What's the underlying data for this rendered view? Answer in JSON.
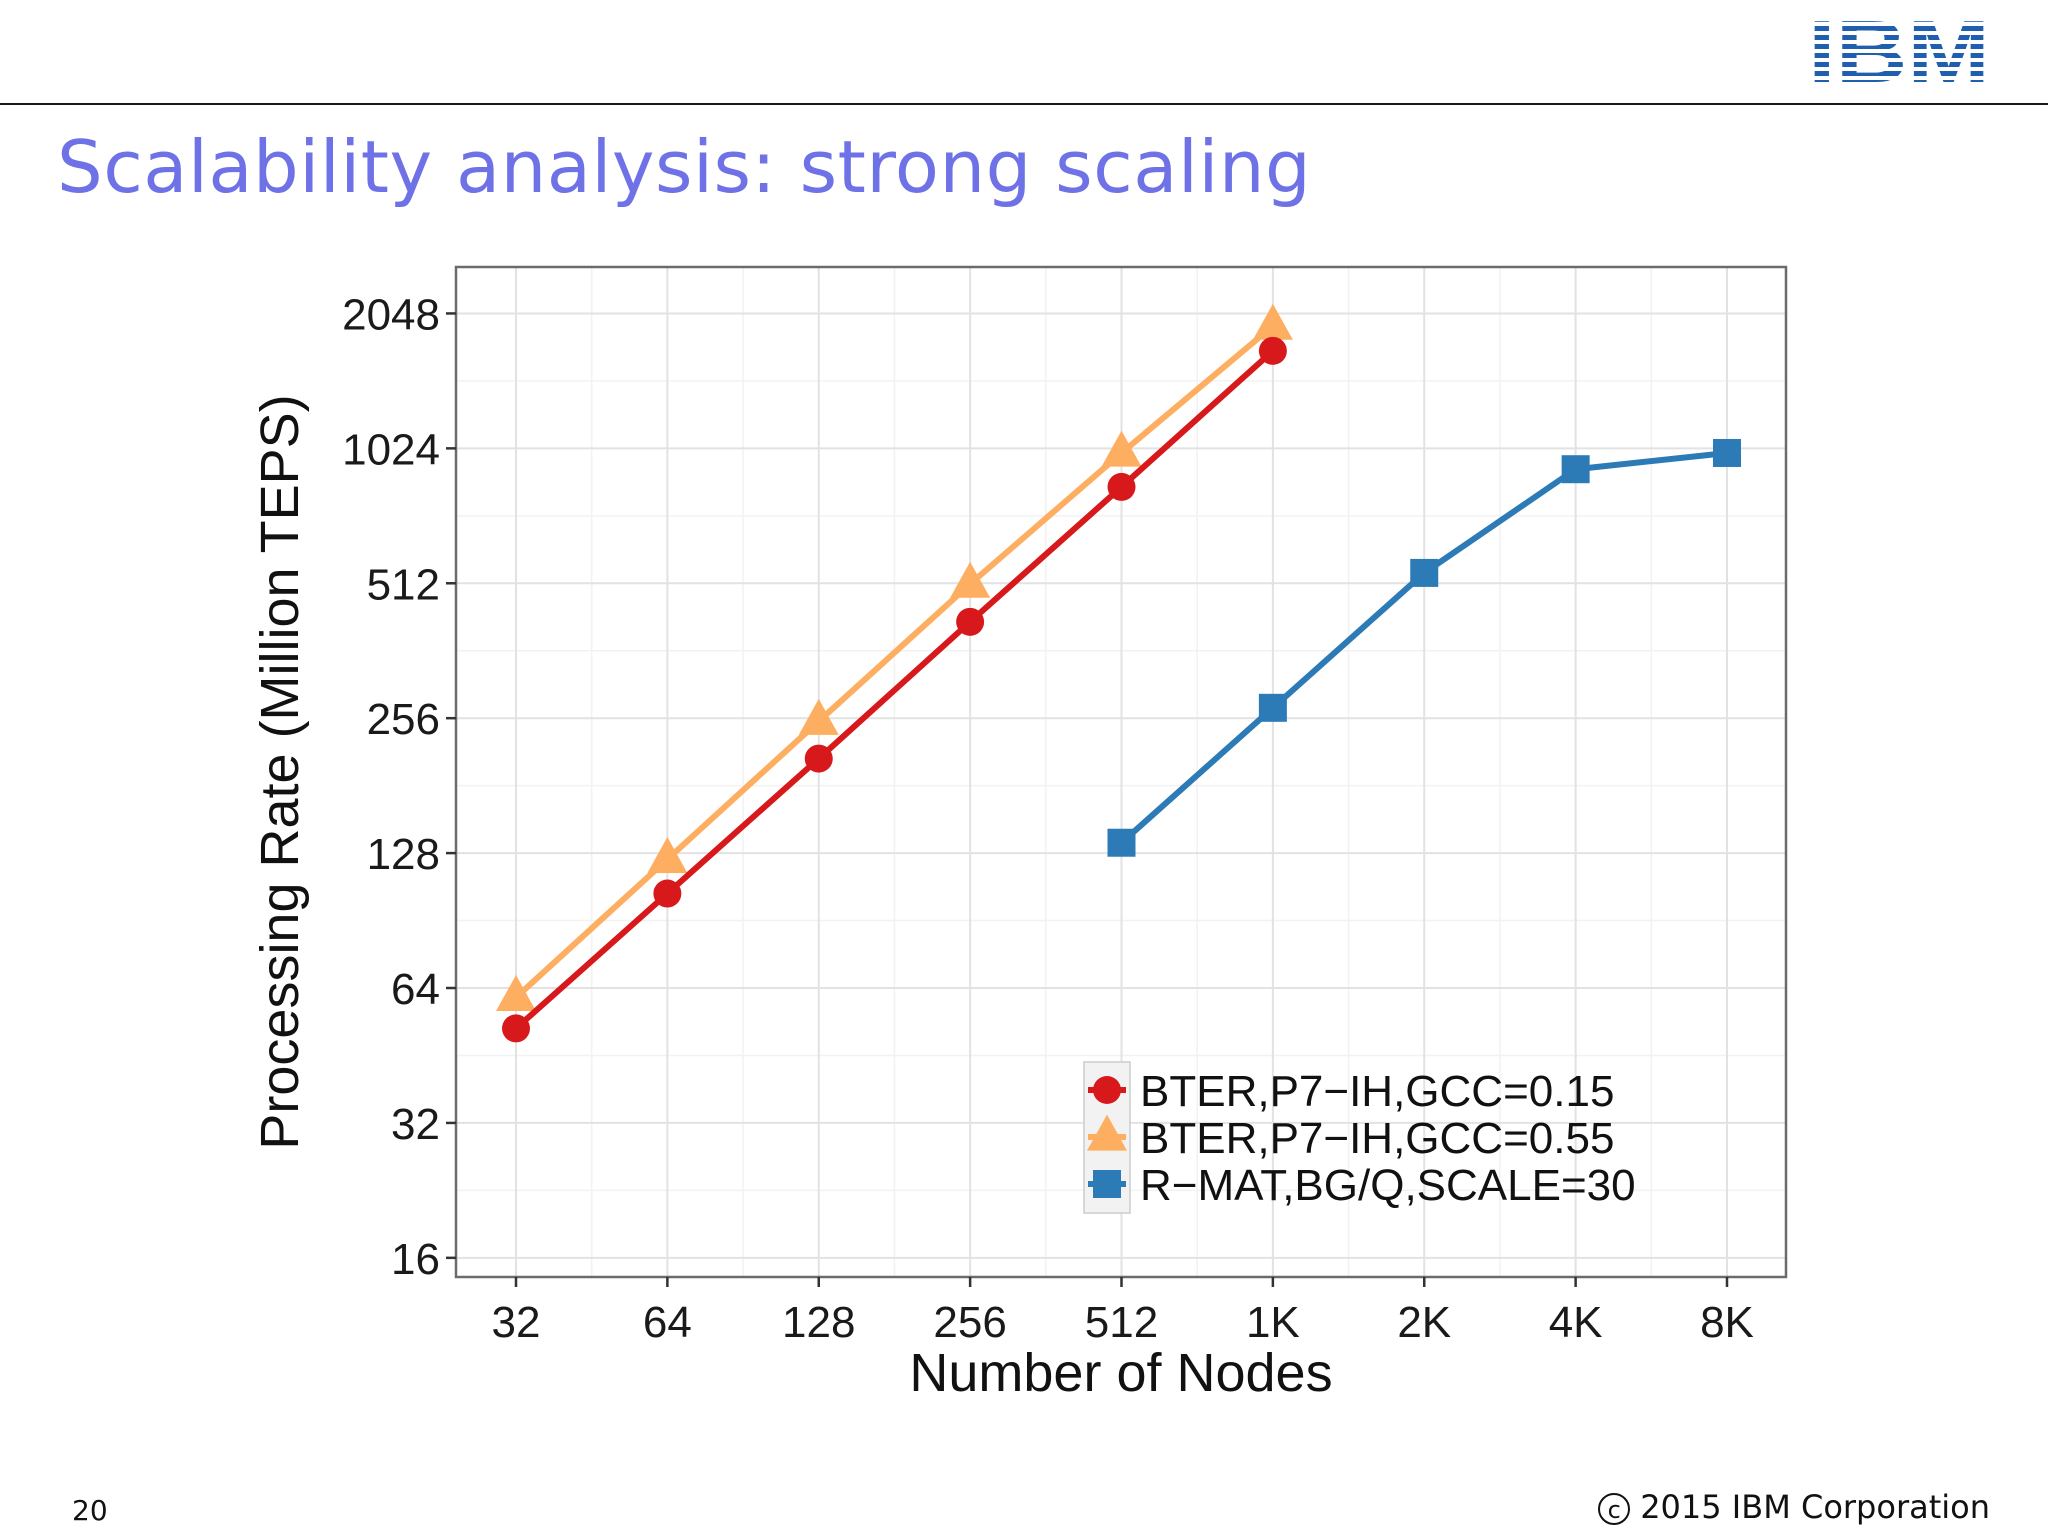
{
  "slide": {
    "title": "Scalability analysis: strong scaling",
    "page_number": "20",
    "copyright_symbol": "c",
    "copyright": "2015 IBM Corporation",
    "logo_text": "IBM",
    "colors": {
      "title": "#6f72e6",
      "logo": "#1f5fae"
    }
  },
  "chart_data": {
    "type": "line",
    "title": "",
    "xlabel": "Number of Nodes",
    "ylabel": "Processing Rate (Million TEPS)",
    "categories": [
      "32",
      "64",
      "128",
      "256",
      "512",
      "1K",
      "2K",
      "4K",
      "8K"
    ],
    "y_scale": "log2",
    "y_ticks": [
      16,
      32,
      64,
      128,
      256,
      512,
      1024,
      2048
    ],
    "y_tick_labels": [
      "16",
      "32",
      "64",
      "128",
      "256",
      "512",
      "1024",
      "2048"
    ],
    "ylim": [
      14.5,
      2600
    ],
    "grid": true,
    "legend_position": "bottom-right",
    "series": [
      {
        "name": "BTER,P7−IH,GCC=0.15",
        "color": "#d7191c",
        "marker": "circle",
        "values": [
          52,
          104,
          208,
          420,
          840,
          1690,
          null,
          null,
          null
        ]
      },
      {
        "name": "BTER,P7−IH,GCC=0.55",
        "color": "#fdae61",
        "marker": "triangle",
        "values": [
          61,
          124,
          252,
          510,
          1000,
          1920,
          null,
          null,
          null
        ]
      },
      {
        "name": "R−MAT,BG/Q,SCALE=30",
        "color": "#2c7bb6",
        "marker": "square",
        "values": [
          null,
          null,
          null,
          null,
          135,
          270,
          540,
          920,
          1000
        ]
      }
    ]
  }
}
